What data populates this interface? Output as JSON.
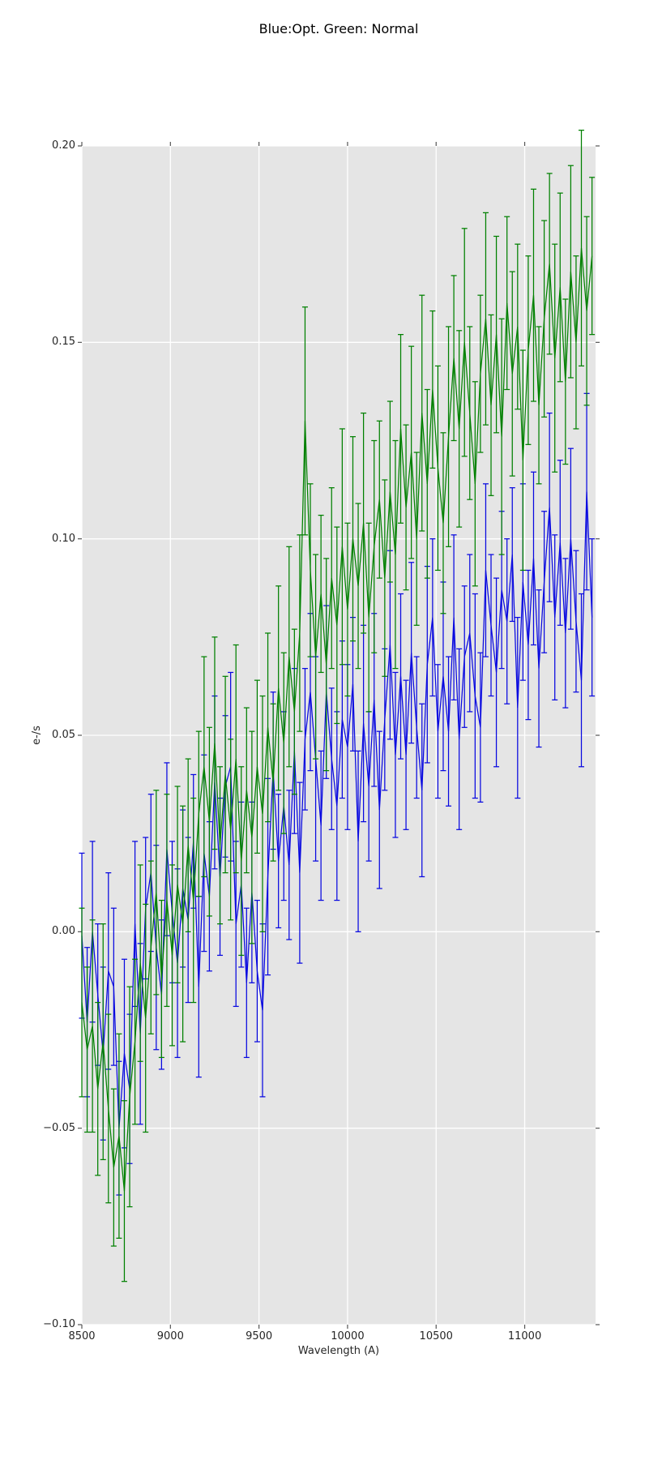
{
  "figure": {
    "title": "Blue:Opt. Green: Normal",
    "background_color": "#ffffff",
    "plot_background_color": "#e5e5e5",
    "grid_color": "#ffffff",
    "tick_mark_color": "#555555",
    "text_color": "#262626"
  },
  "chart_data": {
    "type": "line",
    "title": "Blue:Opt. Green: Normal",
    "xlabel": "Wavelength (A)",
    "ylabel": "e-/s",
    "xlim": [
      8500,
      11400
    ],
    "ylim": [
      -0.1,
      0.2
    ],
    "grid": true,
    "legend_position": "none",
    "x_ticks": [
      8500,
      9000,
      9500,
      10000,
      10500,
      11000
    ],
    "x_tick_labels": [
      "8500",
      "9000",
      "9500",
      "10000",
      "10500",
      "11000"
    ],
    "y_ticks": [
      0.2,
      0.15,
      0.1,
      0.05,
      0.0,
      -0.05,
      -0.1
    ],
    "y_tick_labels": [
      "0.20",
      "0.15",
      "0.10",
      "0.05",
      "0.00",
      "−0.05",
      "−0.10"
    ],
    "marker": "errorbar-with-caps",
    "x": [
      8500,
      8530,
      8560,
      8590,
      8620,
      8650,
      8680,
      8710,
      8740,
      8770,
      8800,
      8830,
      8860,
      8890,
      8920,
      8950,
      8980,
      9010,
      9040,
      9070,
      9100,
      9130,
      9160,
      9190,
      9220,
      9250,
      9280,
      9310,
      9340,
      9370,
      9400,
      9430,
      9460,
      9490,
      9520,
      9550,
      9580,
      9610,
      9640,
      9670,
      9700,
      9730,
      9760,
      9790,
      9820,
      9850,
      9880,
      9910,
      9940,
      9970,
      10000,
      10030,
      10060,
      10090,
      10120,
      10150,
      10180,
      10210,
      10240,
      10270,
      10300,
      10330,
      10360,
      10390,
      10420,
      10450,
      10480,
      10510,
      10540,
      10570,
      10600,
      10630,
      10660,
      10690,
      10720,
      10750,
      10780,
      10810,
      10840,
      10870,
      10900,
      10930,
      10960,
      10990,
      11020,
      11050,
      11080,
      11110,
      11140,
      11170,
      11200,
      11230,
      11260,
      11290,
      11320,
      11350,
      11380
    ],
    "series": [
      {
        "name": "Opt",
        "color": "#0808e0",
        "y": [
          -0.001,
          -0.023,
          0.0,
          -0.016,
          -0.031,
          -0.01,
          -0.014,
          -0.05,
          -0.031,
          -0.04,
          0.002,
          -0.026,
          0.006,
          0.015,
          -0.004,
          -0.016,
          0.021,
          0.005,
          -0.008,
          0.011,
          0.003,
          0.023,
          -0.014,
          0.02,
          0.009,
          0.038,
          0.014,
          0.037,
          0.042,
          0.002,
          0.012,
          -0.013,
          0.01,
          -0.01,
          -0.02,
          0.014,
          0.041,
          0.018,
          0.032,
          0.017,
          0.046,
          0.015,
          0.049,
          0.061,
          0.044,
          0.027,
          0.061,
          0.044,
          0.032,
          0.054,
          0.047,
          0.063,
          0.023,
          0.053,
          0.037,
          0.059,
          0.031,
          0.054,
          0.073,
          0.045,
          0.065,
          0.045,
          0.071,
          0.052,
          0.036,
          0.068,
          0.08,
          0.051,
          0.065,
          0.051,
          0.08,
          0.049,
          0.07,
          0.076,
          0.06,
          0.052,
          0.092,
          0.078,
          0.066,
          0.087,
          0.079,
          0.096,
          0.057,
          0.089,
          0.073,
          0.095,
          0.067,
          0.089,
          0.108,
          0.08,
          0.099,
          0.076,
          0.1,
          0.079,
          0.064,
          0.112,
          0.08
        ],
        "yerr": [
          0.021,
          0.019,
          0.023,
          0.018,
          0.022,
          0.025,
          0.02,
          0.017,
          0.024,
          0.019,
          0.021,
          0.023,
          0.018,
          0.02,
          0.026,
          0.019,
          0.022,
          0.018,
          0.024,
          0.02,
          0.021,
          0.017,
          0.023,
          0.025,
          0.019,
          0.022,
          0.02,
          0.018,
          0.024,
          0.021,
          0.021,
          0.019,
          0.023,
          0.018,
          0.022,
          0.025,
          0.02,
          0.017,
          0.024,
          0.019,
          0.021,
          0.023,
          0.018,
          0.02,
          0.026,
          0.019,
          0.022,
          0.018,
          0.024,
          0.02,
          0.021,
          0.017,
          0.023,
          0.025,
          0.019,
          0.022,
          0.02,
          0.018,
          0.024,
          0.021,
          0.021,
          0.019,
          0.023,
          0.018,
          0.022,
          0.025,
          0.02,
          0.017,
          0.024,
          0.019,
          0.021,
          0.023,
          0.018,
          0.02,
          0.026,
          0.019,
          0.022,
          0.018,
          0.024,
          0.02,
          0.021,
          0.017,
          0.023,
          0.025,
          0.019,
          0.022,
          0.02,
          0.018,
          0.024,
          0.021,
          0.021,
          0.019,
          0.023,
          0.018,
          0.022,
          0.025,
          0.02
        ]
      },
      {
        "name": "Normal",
        "color": "#008000",
        "y": [
          -0.018,
          -0.03,
          -0.024,
          -0.04,
          -0.028,
          -0.045,
          -0.06,
          -0.052,
          -0.066,
          -0.042,
          -0.028,
          -0.008,
          -0.022,
          -0.004,
          0.01,
          -0.012,
          0.008,
          -0.006,
          0.012,
          0.002,
          0.022,
          0.008,
          0.03,
          0.042,
          0.028,
          0.048,
          0.022,
          0.04,
          0.026,
          0.044,
          0.018,
          0.036,
          0.024,
          0.042,
          0.03,
          0.052,
          0.038,
          0.062,
          0.048,
          0.07,
          0.056,
          0.076,
          0.13,
          0.092,
          0.07,
          0.086,
          0.068,
          0.09,
          0.078,
          0.098,
          0.082,
          0.1,
          0.088,
          0.104,
          0.08,
          0.098,
          0.11,
          0.09,
          0.112,
          0.096,
          0.128,
          0.108,
          0.122,
          0.1,
          0.132,
          0.114,
          0.138,
          0.118,
          0.104,
          0.126,
          0.146,
          0.128,
          0.15,
          0.132,
          0.114,
          0.142,
          0.156,
          0.134,
          0.152,
          0.126,
          0.16,
          0.142,
          0.154,
          0.12,
          0.148,
          0.162,
          0.134,
          0.156,
          0.17,
          0.146,
          0.164,
          0.14,
          0.168,
          0.15,
          0.174,
          0.158,
          0.172
        ],
        "yerr": [
          0.024,
          0.021,
          0.027,
          0.022,
          0.03,
          0.024,
          0.02,
          0.026,
          0.023,
          0.028,
          0.021,
          0.025,
          0.029,
          0.022,
          0.026,
          0.02,
          0.027,
          0.023,
          0.025,
          0.03,
          0.022,
          0.026,
          0.021,
          0.028,
          0.024,
          0.027,
          0.02,
          0.025,
          0.023,
          0.029,
          0.024,
          0.021,
          0.027,
          0.022,
          0.03,
          0.024,
          0.02,
          0.026,
          0.023,
          0.028,
          0.021,
          0.025,
          0.029,
          0.022,
          0.026,
          0.02,
          0.027,
          0.023,
          0.025,
          0.03,
          0.022,
          0.026,
          0.021,
          0.028,
          0.024,
          0.027,
          0.02,
          0.025,
          0.023,
          0.029,
          0.024,
          0.021,
          0.027,
          0.022,
          0.03,
          0.024,
          0.02,
          0.026,
          0.023,
          0.028,
          0.021,
          0.025,
          0.029,
          0.022,
          0.026,
          0.02,
          0.027,
          0.023,
          0.025,
          0.03,
          0.022,
          0.026,
          0.021,
          0.028,
          0.024,
          0.027,
          0.02,
          0.025,
          0.023,
          0.029,
          0.024,
          0.021,
          0.027,
          0.022,
          0.03,
          0.024,
          0.02
        ]
      }
    ]
  }
}
